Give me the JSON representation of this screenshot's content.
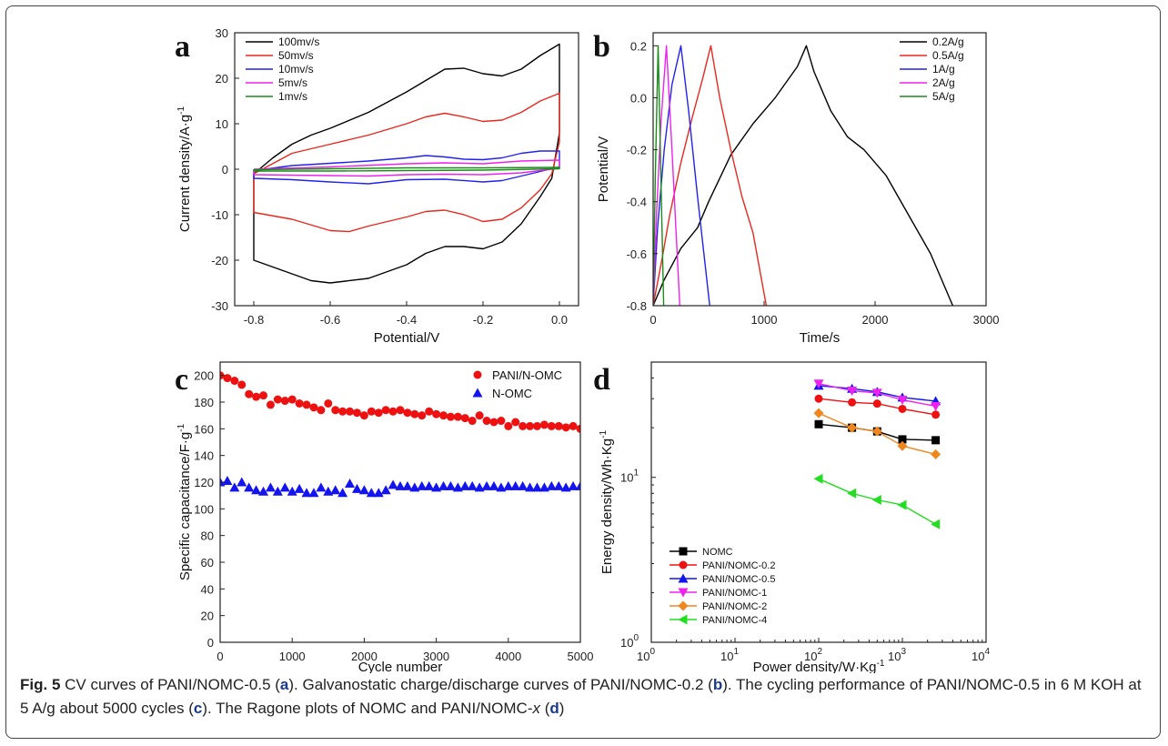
{
  "panels": [
    {
      "letter": "a",
      "chart_data": {
        "type": "line",
        "xlabel": "Potential/V",
        "ylabel": "Current density/A·g-1",
        "xlim": [
          -0.85,
          0.05
        ],
        "ylim": [
          -30,
          30
        ],
        "xticks": [
          -0.8,
          -0.6,
          -0.4,
          -0.2,
          0.0
        ],
        "yticks": [
          -30,
          -20,
          -10,
          0,
          10,
          20,
          30
        ],
        "xtick_labels": [
          "-0.8",
          "-0.6",
          "-0.4",
          "-0.2",
          "0.0"
        ],
        "ytick_labels": [
          "-30",
          "-20",
          "-10",
          "0",
          "10",
          "20",
          "30"
        ],
        "legend_position": "top-left",
        "series": [
          {
            "name": "100mv/s",
            "color": "#000000",
            "x": [
              -0.8,
              -0.75,
              -0.7,
              -0.65,
              -0.6,
              -0.5,
              -0.4,
              -0.3,
              -0.25,
              -0.2,
              -0.15,
              -0.1,
              -0.05,
              0.0,
              0.0,
              -0.02,
              -0.05,
              -0.1,
              -0.15,
              -0.2,
              -0.25,
              -0.3,
              -0.35,
              -0.4,
              -0.5,
              -0.6,
              -0.65,
              -0.7,
              -0.75,
              -0.8,
              -0.8
            ],
            "y": [
              -1,
              2.5,
              5.5,
              7.5,
              9,
              12.5,
              17,
              22,
              22.2,
              21,
              20.5,
              22,
              25,
              27.5,
              8,
              -2,
              -6,
              -12,
              -16,
              -17.5,
              -17,
              -17,
              -18.5,
              -21,
              -24,
              -25,
              -24.5,
              -23,
              -21.5,
              -20,
              -1
            ]
          },
          {
            "name": "50mv/s",
            "color": "#e8281e",
            "x": [
              -0.8,
              -0.7,
              -0.6,
              -0.5,
              -0.4,
              -0.35,
              -0.3,
              -0.25,
              -0.2,
              -0.15,
              -0.1,
              -0.05,
              0.0,
              0.0,
              -0.02,
              -0.05,
              -0.1,
              -0.15,
              -0.2,
              -0.25,
              -0.3,
              -0.35,
              -0.4,
              -0.5,
              -0.55,
              -0.6,
              -0.7,
              -0.8,
              -0.8
            ],
            "y": [
              -1,
              3.5,
              5.5,
              7.5,
              10,
              11.5,
              12.3,
              11.5,
              10.5,
              10.8,
              12.5,
              15,
              16.7,
              6,
              -1,
              -4.5,
              -8.5,
              -11,
              -11.5,
              -10,
              -9,
              -9.3,
              -10.5,
              -12.5,
              -13.7,
              -13.5,
              -11,
              -9.5,
              -1
            ]
          },
          {
            "name": "10mv/s",
            "color": "#2222ee",
            "x": [
              -0.8,
              -0.7,
              -0.6,
              -0.5,
              -0.4,
              -0.35,
              -0.3,
              -0.25,
              -0.2,
              -0.15,
              -0.1,
              -0.05,
              0.0,
              0.0,
              -0.05,
              -0.1,
              -0.15,
              -0.2,
              -0.3,
              -0.4,
              -0.5,
              -0.6,
              -0.7,
              -0.8,
              -0.8
            ],
            "y": [
              -0.3,
              0.8,
              1.3,
              1.8,
              2.5,
              3,
              2.7,
              2.2,
              2.1,
              2.5,
              3.5,
              4,
              4,
              0.5,
              -0.5,
              -1.5,
              -2.5,
              -2.8,
              -2.2,
              -2.3,
              -3.2,
              -2.8,
              -2.3,
              -2,
              -0.3
            ]
          },
          {
            "name": "5mv/s",
            "color": "#ee22ee",
            "x": [
              -0.8,
              -0.6,
              -0.4,
              -0.3,
              -0.2,
              -0.1,
              0.0,
              0.0,
              -0.1,
              -0.2,
              -0.3,
              -0.4,
              -0.5,
              -0.6,
              -0.8,
              -0.8
            ],
            "y": [
              0,
              0.5,
              1.2,
              1.4,
              1.2,
              1.8,
              2,
              0.2,
              -0.8,
              -1.2,
              -1.1,
              -1.2,
              -1.5,
              -1.4,
              -1.2,
              0
            ]
          },
          {
            "name": "1mv/s",
            "color": "#1a8c1a",
            "x": [
              -0.8,
              -0.6,
              -0.4,
              -0.2,
              0.0,
              0.0,
              -0.2,
              -0.4,
              -0.6,
              -0.8,
              -0.8
            ],
            "y": [
              -0.1,
              0.1,
              0.3,
              0.3,
              0.4,
              0.1,
              -0.2,
              -0.3,
              -0.4,
              -0.4,
              -0.1
            ]
          }
        ]
      }
    },
    {
      "letter": "b",
      "chart_data": {
        "type": "line",
        "xlabel": "Time/s",
        "ylabel": "Potential/V",
        "xlim": [
          0,
          3000
        ],
        "ylim": [
          -0.8,
          0.25
        ],
        "xticks": [
          0,
          1000,
          2000,
          3000
        ],
        "yticks": [
          -0.8,
          -0.6,
          -0.4,
          -0.2,
          0.0,
          0.2
        ],
        "xtick_labels": [
          "0",
          "1000",
          "2000",
          "3000"
        ],
        "ytick_labels": [
          "-0.8",
          "-0.6",
          "-0.4",
          "-0.2",
          "0.0",
          "0.2"
        ],
        "legend_position": "top-right",
        "series": [
          {
            "name": "0.2A/g",
            "color": "#000000",
            "x": [
              0,
              100,
              250,
              400,
              500,
              700,
              900,
              1100,
              1300,
              1380,
              1450,
              1600,
              1750,
              1900,
              2100,
              2300,
              2500,
              2700
            ],
            "y": [
              -0.8,
              -0.7,
              -0.58,
              -0.5,
              -0.4,
              -0.22,
              -0.1,
              0.0,
              0.12,
              0.2,
              0.1,
              -0.05,
              -0.15,
              -0.2,
              -0.3,
              -0.45,
              -0.6,
              -0.8
            ]
          },
          {
            "name": "0.5A/g",
            "color": "#e8281e",
            "x": [
              0,
              80,
              150,
              250,
              350,
              450,
              520,
              600,
              700,
              800,
              900,
              1020
            ],
            "y": [
              -0.8,
              -0.62,
              -0.45,
              -0.25,
              -0.08,
              0.08,
              0.2,
              0.0,
              -0.2,
              -0.38,
              -0.52,
              -0.8
            ]
          },
          {
            "name": "1A/g",
            "color": "#2222ee",
            "x": [
              0,
              40,
              100,
              170,
              250,
              320,
              400,
              510
            ],
            "y": [
              -0.8,
              -0.5,
              -0.2,
              0.05,
              0.2,
              -0.05,
              -0.38,
              -0.8
            ]
          },
          {
            "name": "2A/g",
            "color": "#ee22ee",
            "x": [
              0,
              30,
              70,
              120,
              170,
              240
            ],
            "y": [
              -0.8,
              -0.45,
              -0.1,
              0.2,
              -0.2,
              -0.8
            ]
          },
          {
            "name": "5A/g",
            "color": "#1a8c1a",
            "x": [
              0,
              20,
              45,
              70,
              95
            ],
            "y": [
              -0.8,
              -0.3,
              0.2,
              -0.3,
              -0.8
            ]
          }
        ]
      }
    },
    {
      "letter": "c",
      "chart_data": {
        "type": "scatter",
        "xlabel": "Cycle number",
        "ylabel": "Specific capacitance/F·g-1",
        "xlim": [
          0,
          5000
        ],
        "ylim": [
          0,
          210
        ],
        "xticks": [
          0,
          1000,
          2000,
          3000,
          4000,
          5000
        ],
        "yticks": [
          0,
          20,
          40,
          60,
          80,
          100,
          120,
          140,
          160,
          180,
          200
        ],
        "xtick_labels": [
          "0",
          "1000",
          "2000",
          "3000",
          "4000",
          "5000"
        ],
        "ytick_labels": [
          "0",
          "20",
          "40",
          "60",
          "80",
          "100",
          "120",
          "140",
          "160",
          "180",
          "200"
        ],
        "legend_position": "top-right",
        "series": [
          {
            "name": "PANI/N-OMC",
            "color": "#ee1111",
            "marker": "circle",
            "x": [
              0,
              100,
              200,
              300,
              400,
              500,
              600,
              700,
              800,
              900,
              1000,
              1100,
              1200,
              1300,
              1400,
              1500,
              1600,
              1700,
              1800,
              1900,
              2000,
              2100,
              2200,
              2300,
              2400,
              2500,
              2600,
              2700,
              2800,
              2900,
              3000,
              3100,
              3200,
              3300,
              3400,
              3500,
              3600,
              3700,
              3800,
              3900,
              4000,
              4100,
              4200,
              4300,
              4400,
              4500,
              4600,
              4700,
              4800,
              4900,
              5000
            ],
            "y": [
              200,
              198,
              196,
              193,
              186,
              184,
              185,
              178,
              182,
              181,
              182,
              179,
              178,
              176,
              174,
              179,
              174,
              173,
              173,
              172,
              170,
              173,
              172,
              174,
              173,
              174,
              172,
              171,
              170,
              173,
              171,
              170,
              169,
              169,
              168,
              166,
              170,
              166,
              165,
              166,
              162,
              165,
              162,
              162,
              162,
              163,
              162,
              162,
              161,
              162,
              160
            ]
          },
          {
            "name": "N-OMC",
            "color": "#1414ee",
            "marker": "triangle",
            "x": [
              0,
              100,
              200,
              300,
              400,
              500,
              600,
              700,
              800,
              900,
              1000,
              1100,
              1200,
              1300,
              1400,
              1500,
              1600,
              1700,
              1800,
              1900,
              2000,
              2100,
              2200,
              2300,
              2400,
              2500,
              2600,
              2700,
              2800,
              2900,
              3000,
              3100,
              3200,
              3300,
              3400,
              3500,
              3600,
              3700,
              3800,
              3900,
              4000,
              4100,
              4200,
              4300,
              4400,
              4500,
              4600,
              4700,
              4800,
              4900,
              5000
            ],
            "y": [
              120,
              121,
              116,
              120,
              116,
              114,
              113,
              116,
              113,
              116,
              113,
              115,
              112,
              112,
              116,
              113,
              114,
              112,
              119,
              115,
              114,
              112,
              112,
              114,
              118,
              117,
              117,
              116,
              117,
              117,
              116,
              117,
              117,
              116,
              117,
              117,
              116,
              117,
              117,
              116,
              117,
              117,
              117,
              116,
              116,
              116,
              117,
              117,
              116,
              117,
              117
            ]
          }
        ]
      }
    },
    {
      "letter": "d",
      "chart_data": {
        "type": "line",
        "xlabel": "Power density/W·Kg-1",
        "ylabel": "Energy density/Wh·Kg-1",
        "x_scale": "log",
        "y_scale": "log",
        "xlim": [
          1,
          10000
        ],
        "ylim": [
          1,
          50
        ],
        "xticks": [
          1,
          10,
          100,
          1000,
          10000
        ],
        "yticks": [
          1,
          10
        ],
        "xtick_base": [
          "10",
          "10",
          "10",
          "10",
          "10"
        ],
        "xtick_exp": [
          "0",
          "1",
          "2",
          "3",
          "4"
        ],
        "ytick_base": [
          "10",
          "10"
        ],
        "ytick_exp": [
          "0",
          "1"
        ],
        "legend_position": "bottom-left",
        "series": [
          {
            "name": "NOMC",
            "color": "#000000",
            "marker": "square",
            "x": [
              100,
              250,
              500,
              1000,
              2500
            ],
            "y": [
              21,
              20,
              19,
              17,
              16.8
            ]
          },
          {
            "name": "PANI/NOMC-0.2",
            "color": "#ee1111",
            "marker": "circle",
            "x": [
              100,
              250,
              500,
              1000,
              2500
            ],
            "y": [
              30,
              28.5,
              28,
              26,
              24
            ]
          },
          {
            "name": "PANI/NOMC-0.5",
            "color": "#1414ee",
            "marker": "triangle",
            "x": [
              100,
              250,
              500,
              1000,
              2500
            ],
            "y": [
              36,
              34.5,
              33,
              30.5,
              29
            ]
          },
          {
            "name": "PANI/NOMC-1",
            "color": "#ee22ee",
            "marker": "triangle-down",
            "x": [
              100,
              250,
              500,
              1000,
              2500
            ],
            "y": [
              37,
              33.5,
              32.5,
              29.5,
              27
            ]
          },
          {
            "name": "PANI/NOMC-2",
            "color": "#f0861e",
            "marker": "diamond",
            "x": [
              100,
              250,
              500,
              1000,
              2500
            ],
            "y": [
              24.5,
              20,
              19,
              15.5,
              13.8
            ]
          },
          {
            "name": "PANI/NOMC-4",
            "color": "#22dd22",
            "marker": "triangle-left",
            "x": [
              100,
              250,
              500,
              1000,
              2500
            ],
            "y": [
              9.8,
              8,
              7.3,
              6.8,
              5.2
            ]
          }
        ]
      }
    }
  ],
  "caption": {
    "fig": "Fig. 5",
    "parts": [
      {
        "t": " CV curves of PANI/NOMC-0.5 (",
        "b": false
      },
      {
        "t": "a",
        "b": true
      },
      {
        "t": "). Galvanostatic charge/discharge curves of PANI/NOMC-0.2 (",
        "b": false
      },
      {
        "t": "b",
        "b": true
      },
      {
        "t": "). The cycling performance of PANI/NOMC-0.5 in 6 M KOH at 5 A/g about 5000 cycles (",
        "b": false
      },
      {
        "t": "c",
        "b": true
      },
      {
        "t": "). The Ragone plots of NOMC and PANI/NOMC-",
        "b": false
      },
      {
        "t": "x",
        "b": false,
        "i": true
      },
      {
        "t": " (",
        "b": false
      },
      {
        "t": "d",
        "b": true
      },
      {
        "t": ")",
        "b": false
      }
    ]
  }
}
